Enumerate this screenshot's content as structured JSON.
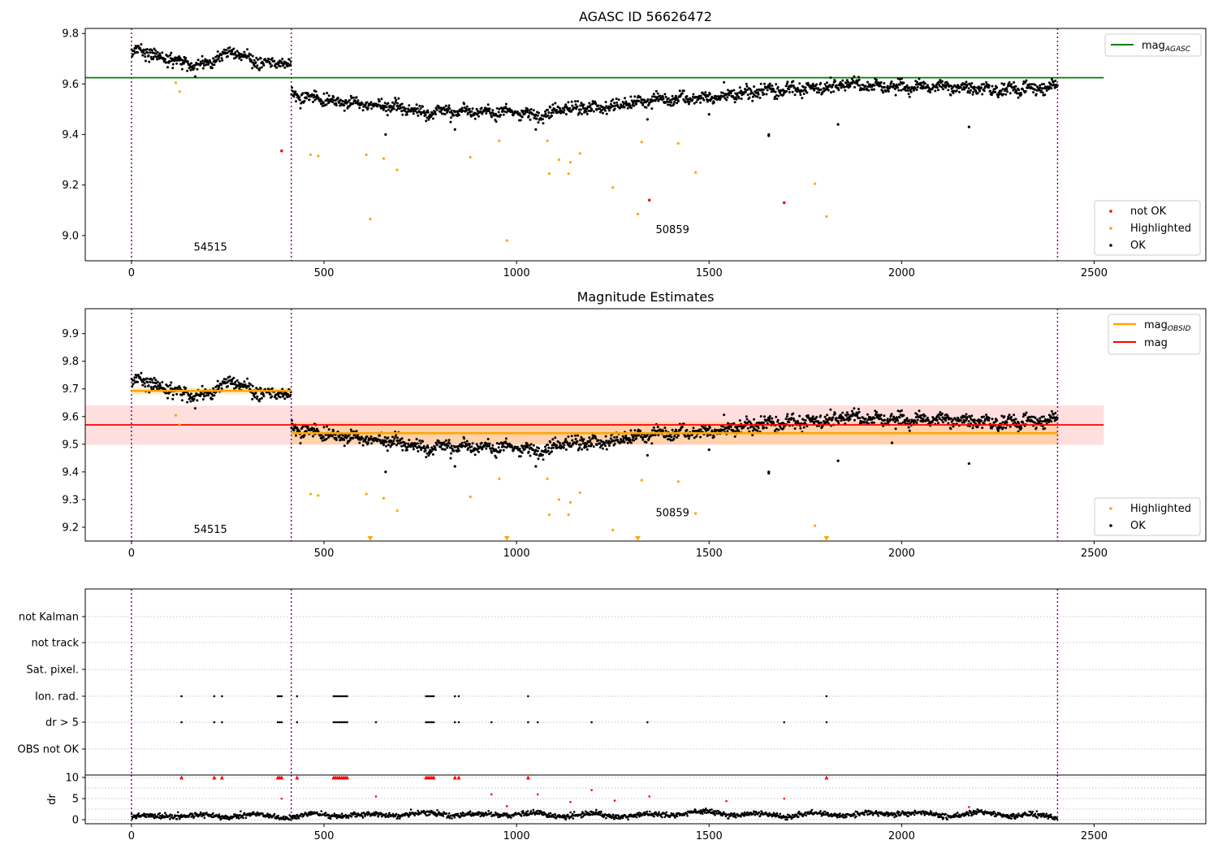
{
  "figure": {
    "title_top": "AGASC ID 56626472",
    "title_mid": "Magnitude Estimates"
  },
  "colors": {
    "ok": "#000000",
    "highlighted": "#ffa500",
    "not_ok": "#ff0000",
    "mag_agasc": "#008000",
    "mag_obsid": "#ffa500",
    "mag": "#ff0000",
    "obsid_boundary": "#800080",
    "dr_high": "#ff0000"
  },
  "chart_data": [
    {
      "id": "top",
      "type": "scatter",
      "title": "AGASC ID 56626472",
      "xlim": [
        -120,
        2790
      ],
      "ylim": [
        8.9,
        9.82
      ],
      "xticks": [
        0,
        500,
        1000,
        1500,
        2000,
        2500
      ],
      "yticks": [
        9.0,
        9.2,
        9.4,
        9.6,
        9.8
      ],
      "obsid_boundaries": [
        0,
        415,
        2405
      ],
      "obsid_labels": [
        {
          "text": "54515",
          "x": 205,
          "y": 8.94
        },
        {
          "text": "50859",
          "x": 1405,
          "y": 9.01
        }
      ],
      "hlines": [
        {
          "name": "mag_AGASC",
          "value": 9.625,
          "x": [
            -120,
            2525
          ],
          "color": "#008000"
        }
      ],
      "ok_segments": [
        {
          "x": [
            0,
            415
          ],
          "trend": [
            [
              0,
              9.725
            ],
            [
              30,
              9.735
            ],
            [
              60,
              9.715
            ],
            [
              100,
              9.695
            ],
            [
              140,
              9.68
            ],
            [
              180,
              9.67
            ],
            [
              220,
              9.7
            ],
            [
              260,
              9.725
            ],
            [
              300,
              9.7
            ],
            [
              340,
              9.685
            ],
            [
              380,
              9.68
            ],
            [
              415,
              9.675
            ]
          ],
          "scatter": 0.012
        },
        {
          "x": [
            415,
            2405
          ],
          "trend": [
            [
              415,
              9.56
            ],
            [
              500,
              9.535
            ],
            [
              600,
              9.52
            ],
            [
              700,
              9.505
            ],
            [
              760,
              9.485
            ],
            [
              820,
              9.495
            ],
            [
              900,
              9.485
            ],
            [
              1000,
              9.495
            ],
            [
              1060,
              9.47
            ],
            [
              1120,
              9.505
            ],
            [
              1200,
              9.505
            ],
            [
              1300,
              9.525
            ],
            [
              1400,
              9.54
            ],
            [
              1500,
              9.55
            ],
            [
              1600,
              9.56
            ],
            [
              1700,
              9.58
            ],
            [
              1800,
              9.585
            ],
            [
              1860,
              9.6
            ],
            [
              1950,
              9.585
            ],
            [
              2050,
              9.59
            ],
            [
              2150,
              9.585
            ],
            [
              2250,
              9.58
            ],
            [
              2350,
              9.58
            ],
            [
              2405,
              9.595
            ]
          ],
          "scatter": 0.012
        }
      ],
      "ok_outliers": [
        [
          660,
          9.4
        ],
        [
          1500,
          9.48
        ],
        [
          1655,
          9.4
        ],
        [
          1655,
          9.395
        ],
        [
          1835,
          9.44
        ],
        [
          2175,
          9.43
        ],
        [
          840,
          9.42
        ],
        [
          1050,
          9.42
        ],
        [
          1340,
          9.46
        ]
      ],
      "highlighted": [
        [
          115,
          9.605
        ],
        [
          125,
          9.57
        ],
        [
          465,
          9.32
        ],
        [
          485,
          9.315
        ],
        [
          610,
          9.32
        ],
        [
          620,
          9.065
        ],
        [
          655,
          9.305
        ],
        [
          690,
          9.26
        ],
        [
          880,
          9.31
        ],
        [
          955,
          9.375
        ],
        [
          975,
          8.98
        ],
        [
          1080,
          9.375
        ],
        [
          1085,
          9.245
        ],
        [
          1110,
          9.3
        ],
        [
          1135,
          9.245
        ],
        [
          1140,
          9.29
        ],
        [
          1165,
          9.325
        ],
        [
          1250,
          9.19
        ],
        [
          1315,
          9.085
        ],
        [
          1325,
          9.37
        ],
        [
          1420,
          9.365
        ],
        [
          1465,
          9.25
        ],
        [
          1775,
          9.205
        ],
        [
          1805,
          9.075
        ]
      ],
      "not_ok": [
        [
          390,
          9.335
        ],
        [
          1345,
          9.14
        ],
        [
          1695,
          9.13
        ]
      ],
      "legend_top": [
        {
          "label": "mag_AGASC",
          "base": "mag",
          "sub": "AGASC",
          "color": "#008000"
        }
      ],
      "legend_bottom": [
        {
          "label": "not OK",
          "color": "#ff0000"
        },
        {
          "label": "Highlighted",
          "color": "#ffa500"
        },
        {
          "label": "OK",
          "color": "#000000"
        }
      ]
    },
    {
      "id": "mid",
      "type": "scatter",
      "title": "Magnitude Estimates",
      "xlim": [
        -120,
        2790
      ],
      "ylim": [
        9.15,
        9.99
      ],
      "xticks": [
        0,
        500,
        1000,
        1500,
        2000,
        2500
      ],
      "yticks": [
        9.2,
        9.3,
        9.4,
        9.5,
        9.6,
        9.7,
        9.8,
        9.9
      ],
      "obsid_boundaries": [
        0,
        415,
        2405
      ],
      "obsid_labels": [
        {
          "text": "54515",
          "x": 205,
          "y": 9.18
        },
        {
          "text": "50859",
          "x": 1405,
          "y": 9.24
        }
      ],
      "bands": [
        {
          "name": "mag",
          "x": [
            -120,
            2525
          ],
          "y": [
            9.498,
            9.64
          ],
          "color": "#ff0000",
          "opacity": 0.13
        },
        {
          "name": "mag_OBSID 54515",
          "x": [
            0,
            415
          ],
          "y": [
            9.68,
            9.705
          ],
          "color": "#ffa500",
          "opacity": 0.22
        },
        {
          "name": "mag_OBSID 50859",
          "x": [
            415,
            2405
          ],
          "y": [
            9.5,
            9.58
          ],
          "color": "#ffa500",
          "opacity": 0.22
        }
      ],
      "lines": [
        {
          "name": "mag_OBSID 54515",
          "x": [
            0,
            415
          ],
          "value": 9.693,
          "color": "#ffa500"
        },
        {
          "name": "mag_OBSID 50859",
          "x": [
            415,
            2405
          ],
          "value": 9.54,
          "color": "#ffa500"
        },
        {
          "name": "mag",
          "x": [
            -120,
            2525
          ],
          "value": 9.57,
          "color": "#ff0000"
        }
      ],
      "ok_segments": [
        {
          "x": [
            0,
            415
          ],
          "trend": [
            [
              0,
              9.725
            ],
            [
              30,
              9.735
            ],
            [
              60,
              9.715
            ],
            [
              100,
              9.695
            ],
            [
              140,
              9.68
            ],
            [
              180,
              9.67
            ],
            [
              220,
              9.7
            ],
            [
              260,
              9.725
            ],
            [
              300,
              9.7
            ],
            [
              340,
              9.685
            ],
            [
              380,
              9.68
            ],
            [
              415,
              9.675
            ]
          ],
          "scatter": 0.012
        },
        {
          "x": [
            415,
            2405
          ],
          "trend": [
            [
              415,
              9.56
            ],
            [
              500,
              9.535
            ],
            [
              600,
              9.52
            ],
            [
              700,
              9.505
            ],
            [
              760,
              9.485
            ],
            [
              820,
              9.495
            ],
            [
              900,
              9.485
            ],
            [
              1000,
              9.495
            ],
            [
              1060,
              9.47
            ],
            [
              1120,
              9.505
            ],
            [
              1200,
              9.505
            ],
            [
              1300,
              9.525
            ],
            [
              1400,
              9.54
            ],
            [
              1500,
              9.55
            ],
            [
              1600,
              9.56
            ],
            [
              1700,
              9.58
            ],
            [
              1800,
              9.585
            ],
            [
              1860,
              9.6
            ],
            [
              1950,
              9.585
            ],
            [
              2050,
              9.59
            ],
            [
              2150,
              9.585
            ],
            [
              2250,
              9.58
            ],
            [
              2350,
              9.58
            ],
            [
              2405,
              9.595
            ]
          ],
          "scatter": 0.012
        }
      ],
      "ok_outliers": [
        [
          660,
          9.4
        ],
        [
          1500,
          9.48
        ],
        [
          1655,
          9.4
        ],
        [
          1655,
          9.395
        ],
        [
          1835,
          9.44
        ],
        [
          2175,
          9.43
        ],
        [
          840,
          9.42
        ],
        [
          1050,
          9.42
        ],
        [
          1340,
          9.46
        ],
        [
          1975,
          9.505
        ]
      ],
      "highlighted": [
        [
          115,
          9.605
        ],
        [
          125,
          9.57
        ],
        [
          465,
          9.32
        ],
        [
          485,
          9.315
        ],
        [
          610,
          9.32
        ],
        [
          655,
          9.305
        ],
        [
          690,
          9.26
        ],
        [
          880,
          9.31
        ],
        [
          955,
          9.375
        ],
        [
          1080,
          9.375
        ],
        [
          1085,
          9.245
        ],
        [
          1110,
          9.3
        ],
        [
          1135,
          9.245
        ],
        [
          1140,
          9.29
        ],
        [
          1165,
          9.325
        ],
        [
          1250,
          9.19
        ],
        [
          1325,
          9.37
        ],
        [
          1420,
          9.365
        ],
        [
          1465,
          9.25
        ],
        [
          1775,
          9.205
        ]
      ],
      "highlighted_clipped": [
        620,
        975,
        1315,
        1805
      ],
      "legend_top": [
        {
          "label": "mag_OBSID",
          "base": "mag",
          "sub": "OBSID",
          "color": "#ffa500"
        },
        {
          "label": "mag",
          "base": "mag",
          "sub": "",
          "color": "#ff0000"
        }
      ],
      "legend_bottom": [
        {
          "label": "Highlighted",
          "color": "#ffa500"
        },
        {
          "label": "OK",
          "color": "#000000"
        }
      ]
    },
    {
      "id": "flags",
      "type": "scatter",
      "xlim": [
        -120,
        2790
      ],
      "ylabels": [
        "not Kalman",
        "not track",
        "Sat. pixel.",
        "Ion. rad.",
        "dr > 5",
        "OBS not OK"
      ],
      "obsid_boundaries": [
        0,
        415,
        2405
      ],
      "flag_points": {
        "Ion. rad.": [
          130,
          215,
          235,
          380,
          385,
          390,
          430,
          525,
          530,
          535,
          540,
          545,
          550,
          555,
          560,
          765,
          770,
          775,
          780,
          785,
          840,
          850,
          1030,
          1805
        ],
        "dr > 5": [
          130,
          215,
          235,
          380,
          385,
          390,
          430,
          525,
          530,
          535,
          540,
          545,
          550,
          555,
          560,
          635,
          765,
          770,
          775,
          780,
          785,
          840,
          850,
          935,
          1030,
          1055,
          1195,
          1340,
          1695,
          1805
        ]
      }
    },
    {
      "id": "dr",
      "type": "scatter",
      "xlim": [
        -120,
        2790
      ],
      "ylim": [
        -0.5,
        10.5
      ],
      "xticks": [
        0,
        500,
        1000,
        1500,
        2000,
        2500
      ],
      "yticks": [
        0,
        5,
        10
      ],
      "ylabel": "dr",
      "obsid_boundaries": [
        0,
        415,
        2405
      ],
      "clipped_at_10": [
        130,
        215,
        235,
        380,
        385,
        390,
        430,
        525,
        530,
        535,
        540,
        545,
        550,
        555,
        560,
        765,
        770,
        775,
        780,
        785,
        840,
        850,
        1030,
        1805
      ],
      "high_points": [
        [
          390,
          5.0
        ],
        [
          635,
          5.5
        ],
        [
          935,
          6.0
        ],
        [
          975,
          3.2
        ],
        [
          1055,
          6.0
        ],
        [
          1140,
          4.2
        ],
        [
          1195,
          7.0
        ],
        [
          1255,
          4.5
        ],
        [
          1345,
          5.5
        ],
        [
          1545,
          4.4
        ],
        [
          1695,
          5.0
        ],
        [
          2175,
          3.0
        ]
      ],
      "ok_trend": [
        [
          0,
          0.6
        ],
        [
          100,
          1.0
        ],
        [
          200,
          0.8
        ],
        [
          300,
          1.0
        ],
        [
          400,
          0.7
        ],
        [
          500,
          1.2
        ],
        [
          600,
          1.0
        ],
        [
          700,
          1.3
        ],
        [
          800,
          1.5
        ],
        [
          900,
          1.0
        ],
        [
          1000,
          1.4
        ],
        [
          1100,
          1.0
        ],
        [
          1200,
          1.2
        ],
        [
          1300,
          0.9
        ],
        [
          1400,
          1.3
        ],
        [
          1500,
          1.8
        ],
        [
          1600,
          1.2
        ],
        [
          1700,
          1.0
        ],
        [
          1800,
          1.4
        ],
        [
          1900,
          1.2
        ],
        [
          2000,
          1.8
        ],
        [
          2100,
          1.0
        ],
        [
          2200,
          1.5
        ],
        [
          2300,
          1.2
        ],
        [
          2405,
          0.5
        ]
      ]
    }
  ]
}
